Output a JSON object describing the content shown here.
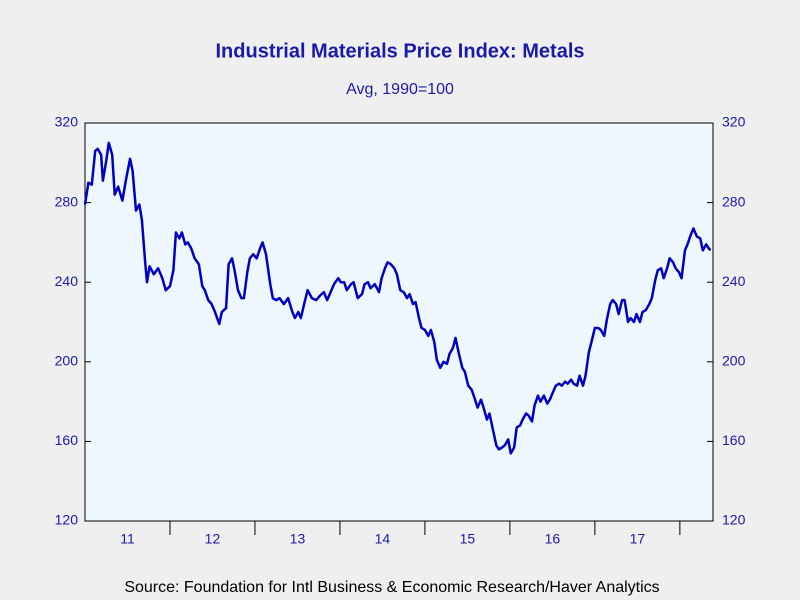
{
  "chart_data": {
    "type": "line",
    "title": "Industrial Materials Price Index: Metals",
    "subtitle": "Avg, 1990=100",
    "source": "Source:  Foundation for Intl Business & Economic Research/Haver Analytics",
    "xlim": [
      2011,
      2018.39
    ],
    "xticks": [
      2012,
      2013,
      2014,
      2015,
      2016,
      2017,
      2018
    ],
    "year_labels": [
      {
        "value": 2011.5,
        "label": "11"
      },
      {
        "value": 2012.5,
        "label": "12"
      },
      {
        "value": 2013.5,
        "label": "13"
      },
      {
        "value": 2014.5,
        "label": "14"
      },
      {
        "value": 2015.5,
        "label": "15"
      },
      {
        "value": 2016.5,
        "label": "16"
      },
      {
        "value": 2017.5,
        "label": "17"
      }
    ],
    "ylim": [
      120,
      320
    ],
    "yticks": [
      120,
      160,
      200,
      240,
      280,
      320
    ],
    "y2lim": [
      120,
      320
    ],
    "y2ticks": [
      120,
      160,
      200,
      240,
      280,
      320
    ],
    "grid": false,
    "x": [
      2011.0,
      2011.04,
      2011.08,
      2011.12,
      2011.15,
      2011.19,
      2011.21,
      2011.25,
      2011.28,
      2011.32,
      2011.35,
      2011.39,
      2011.44,
      2011.48,
      2011.53,
      2011.56,
      2011.6,
      2011.64,
      2011.67,
      2011.71,
      2011.73,
      2011.76,
      2011.81,
      2011.86,
      2011.91,
      2011.95,
      2012.0,
      2012.04,
      2012.07,
      2012.11,
      2012.14,
      2012.18,
      2012.21,
      2012.25,
      2012.29,
      2012.34,
      2012.38,
      2012.41,
      2012.45,
      2012.49,
      2012.53,
      2012.58,
      2012.61,
      2012.66,
      2012.69,
      2012.73,
      2012.76,
      2012.8,
      2012.84,
      2012.87,
      2012.91,
      2012.94,
      2012.98,
      2013.02,
      2013.06,
      2013.09,
      2013.13,
      2013.18,
      2013.21,
      2013.25,
      2013.29,
      2013.34,
      2013.39,
      2013.44,
      2013.47,
      2013.51,
      2013.54,
      2013.59,
      2013.62,
      2013.67,
      2013.72,
      2013.76,
      2013.81,
      2013.85,
      2013.88,
      2013.93,
      2013.98,
      2014.01,
      2014.05,
      2014.08,
      2014.13,
      2014.16,
      2014.21,
      2014.26,
      2014.29,
      2014.33,
      2014.36,
      2014.41,
      2014.46,
      2014.49,
      2014.53,
      2014.56,
      2014.6,
      2014.64,
      2014.67,
      2014.71,
      2014.75,
      2014.79,
      2014.82,
      2014.86,
      2014.89,
      2014.93,
      2014.96,
      2015.0,
      2015.04,
      2015.07,
      2015.11,
      2015.14,
      2015.18,
      2015.22,
      2015.26,
      2015.29,
      2015.33,
      2015.36,
      2015.4,
      2015.44,
      2015.47,
      2015.51,
      2015.55,
      2015.59,
      2015.62,
      2015.66,
      2015.69,
      2015.73,
      2015.76,
      2015.8,
      2015.84,
      2015.87,
      2015.91,
      2015.94,
      2015.98,
      2016.01,
      2016.05,
      2016.08,
      2016.12,
      2016.15,
      2016.19,
      2016.22,
      2016.26,
      2016.29,
      2016.33,
      2016.36,
      2016.4,
      2016.44,
      2016.47,
      2016.51,
      2016.54,
      2016.58,
      2016.61,
      2016.65,
      2016.68,
      2016.72,
      2016.75,
      2016.79,
      2016.82,
      2016.86,
      2016.89,
      2016.93,
      2016.96,
      2017.0,
      2017.04,
      2017.07,
      2017.11,
      2017.14,
      2017.18,
      2017.21,
      2017.25,
      2017.28,
      2017.32,
      2017.35,
      2017.39,
      2017.42,
      2017.46,
      2017.49,
      2017.53,
      2017.56,
      2017.6,
      2017.64,
      2017.67,
      2017.71,
      2017.74,
      2017.78,
      2017.81,
      2017.85,
      2017.88,
      2017.92,
      2017.95,
      2017.99,
      2018.02,
      2018.06,
      2018.09,
      2018.13,
      2018.16,
      2018.2,
      2018.24,
      2018.27,
      2018.31,
      2018.34,
      2018.36
    ],
    "series": [
      {
        "name": "Metals",
        "color": "#0000c0",
        "values": [
          279,
          290,
          289,
          306,
          307,
          304,
          291,
          301,
          310,
          304,
          284,
          288,
          281,
          291,
          302,
          296,
          276,
          279,
          271,
          249,
          240,
          248,
          244,
          247,
          242,
          236,
          238,
          246,
          265,
          262,
          265,
          259,
          260,
          257,
          252,
          249,
          238,
          236,
          231,
          229,
          225,
          219,
          225,
          227,
          249,
          252,
          246,
          236,
          232,
          232,
          245,
          252,
          254,
          252,
          257,
          260,
          254,
          239,
          232,
          231,
          232,
          229,
          232,
          225,
          222,
          225,
          222,
          231,
          236,
          232,
          231,
          233,
          235,
          231,
          234,
          239,
          242,
          240,
          240,
          236,
          239,
          240,
          232,
          234,
          239,
          240,
          237,
          239,
          235,
          242,
          247,
          250,
          249,
          247,
          244,
          236,
          235,
          232,
          234,
          229,
          230,
          222,
          217,
          216,
          213,
          216,
          210,
          201,
          197,
          200,
          199,
          204,
          207,
          212,
          204,
          197,
          195,
          188,
          186,
          181,
          177,
          181,
          177,
          171,
          174,
          166,
          158,
          156,
          157,
          158,
          161,
          154,
          157,
          167,
          168,
          171,
          174,
          173,
          170,
          178,
          183,
          180,
          183,
          179,
          181,
          185,
          188,
          189,
          188,
          190,
          189,
          191,
          189,
          188,
          193,
          188,
          193,
          205,
          210,
          217,
          217,
          216,
          213,
          221,
          229,
          231,
          229,
          224,
          231,
          231,
          220,
          222,
          220,
          224,
          220,
          225,
          226,
          229,
          232,
          241,
          246,
          247,
          242,
          247,
          252,
          250,
          247,
          245,
          242,
          256,
          259,
          264,
          267,
          263,
          262,
          256,
          259,
          257,
          256
        ]
      }
    ]
  }
}
